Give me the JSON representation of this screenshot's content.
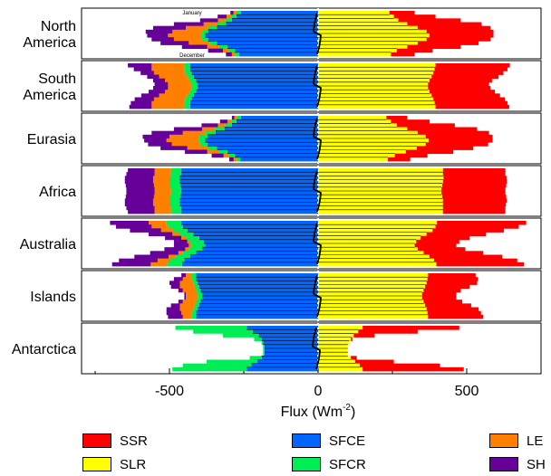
{
  "chart_data": {
    "type": "bar",
    "orientation": "horizontal-diverging-stacked",
    "xlabel": "Flux (Wm",
    "xlabel_sup": "-2",
    "xlabel_end": ")",
    "xlim": [
      -800,
      800
    ],
    "xticks": [
      -500,
      0,
      500
    ],
    "xtick_labels": [
      "-500",
      "0",
      "500"
    ],
    "month_labels": {
      "first": "January",
      "last": "December"
    },
    "colors": {
      "SSR": "#ff0000",
      "SLR": "#ffff00",
      "SFCE": "#0066ff",
      "SFCR": "#00ee55",
      "LE": "#ff8000",
      "SH": "#660099"
    },
    "series_order_positive": [
      "SLR",
      "SSR"
    ],
    "series_order_negative": [
      "SFCE",
      "SFCR",
      "LE",
      "SH"
    ],
    "panels": [
      {
        "region_lines": [
          "North",
          "America"
        ],
        "rows": [
          {
            "SLR": 240,
            "SSR": 85,
            "SFCE": -260,
            "SFCR": -15,
            "LE": -10,
            "SH": -10
          },
          {
            "SLR": 255,
            "SSR": 140,
            "SFCE": -275,
            "SFCR": -18,
            "LE": -15,
            "SH": -30
          },
          {
            "SLR": 270,
            "SSR": 210,
            "SFCE": -290,
            "SFCR": -22,
            "LE": -25,
            "SH": -60
          },
          {
            "SLR": 300,
            "SSR": 250,
            "SFCE": -310,
            "SFCR": -30,
            "LE": -45,
            "SH": -100
          },
          {
            "SLR": 335,
            "SSR": 245,
            "SFCE": -340,
            "SFCR": -30,
            "LE": -75,
            "SH": -110
          },
          {
            "SLR": 365,
            "SSR": 225,
            "SFCE": -370,
            "SFCR": -20,
            "LE": -100,
            "SH": -90
          },
          {
            "SLR": 375,
            "SSR": 215,
            "SFCE": -380,
            "SFCR": -15,
            "LE": -110,
            "SH": -70
          },
          {
            "SLR": 365,
            "SSR": 215,
            "SFCE": -370,
            "SFCR": -20,
            "LE": -95,
            "SH": -75
          },
          {
            "SLR": 335,
            "SSR": 205,
            "SFCE": -340,
            "SFCR": -25,
            "LE": -70,
            "SH": -95
          },
          {
            "SLR": 300,
            "SSR": 180,
            "SFCE": -305,
            "SFCR": -28,
            "LE": -40,
            "SH": -85
          },
          {
            "SLR": 265,
            "SSR": 120,
            "SFCE": -280,
            "SFCR": -20,
            "LE": -20,
            "SH": -50
          },
          {
            "SLR": 245,
            "SSR": 80,
            "SFCE": -265,
            "SFCR": -15,
            "LE": -10,
            "SH": -20
          }
        ]
      },
      {
        "region_lines": [
          "South",
          "America"
        ],
        "rows": [
          {
            "SLR": 395,
            "SSR": 250,
            "SFCE": -430,
            "SFCR": -20,
            "LE": -110,
            "SH": -80
          },
          {
            "SLR": 392,
            "SSR": 245,
            "SFCE": -430,
            "SFCR": -20,
            "LE": -110,
            "SH": -60
          },
          {
            "SLR": 388,
            "SSR": 235,
            "SFCE": -425,
            "SFCR": -22,
            "LE": -105,
            "SH": -45
          },
          {
            "SLR": 382,
            "SSR": 225,
            "SFCE": -418,
            "SFCR": -22,
            "LE": -95,
            "SH": -40
          },
          {
            "SLR": 375,
            "SSR": 210,
            "SFCE": -410,
            "SFCR": -20,
            "LE": -85,
            "SH": -40
          },
          {
            "SLR": 370,
            "SSR": 205,
            "SFCE": -405,
            "SFCR": -20,
            "LE": -80,
            "SH": -45
          },
          {
            "SLR": 370,
            "SSR": 210,
            "SFCE": -405,
            "SFCR": -20,
            "LE": -80,
            "SH": -50
          },
          {
            "SLR": 375,
            "SSR": 220,
            "SFCE": -410,
            "SFCR": -20,
            "LE": -85,
            "SH": -55
          },
          {
            "SLR": 382,
            "SSR": 230,
            "SFCE": -418,
            "SFCR": -22,
            "LE": -95,
            "SH": -60
          },
          {
            "SLR": 388,
            "SSR": 240,
            "SFCE": -425,
            "SFCR": -22,
            "LE": -105,
            "SH": -65
          },
          {
            "SLR": 392,
            "SSR": 245,
            "SFCE": -430,
            "SFCR": -20,
            "LE": -110,
            "SH": -70
          },
          {
            "SLR": 395,
            "SSR": 248,
            "SFCE": -430,
            "SFCR": -20,
            "LE": -110,
            "SH": -75
          }
        ]
      },
      {
        "region_lines": [
          "Eurasia"
        ],
        "rows": [
          {
            "SLR": 230,
            "SSR": 70,
            "SFCE": -260,
            "SFCR": -12,
            "LE": -10,
            "SH": -8
          },
          {
            "SLR": 245,
            "SSR": 130,
            "SFCE": -275,
            "SFCR": -15,
            "LE": -15,
            "SH": -25
          },
          {
            "SLR": 265,
            "SSR": 195,
            "SFCE": -290,
            "SFCR": -22,
            "LE": -25,
            "SH": -55
          },
          {
            "SLR": 300,
            "SSR": 235,
            "SFCE": -315,
            "SFCR": -30,
            "LE": -45,
            "SH": -95
          },
          {
            "SLR": 335,
            "SSR": 240,
            "SFCE": -345,
            "SFCR": -35,
            "LE": -75,
            "SH": -105
          },
          {
            "SLR": 362,
            "SSR": 225,
            "SFCE": -372,
            "SFCR": -28,
            "LE": -100,
            "SH": -90
          },
          {
            "SLR": 372,
            "SSR": 215,
            "SFCE": -380,
            "SFCR": -20,
            "LE": -110,
            "SH": -75
          },
          {
            "SLR": 362,
            "SSR": 210,
            "SFCE": -372,
            "SFCR": -25,
            "LE": -95,
            "SH": -80
          },
          {
            "SLR": 332,
            "SSR": 190,
            "SFCE": -340,
            "SFCR": -30,
            "LE": -70,
            "SH": -90
          },
          {
            "SLR": 295,
            "SSR": 160,
            "SFCE": -305,
            "SFCR": -28,
            "LE": -40,
            "SH": -75
          },
          {
            "SLR": 258,
            "SSR": 110,
            "SFCE": -280,
            "SFCR": -20,
            "LE": -18,
            "SH": -40
          },
          {
            "SLR": 235,
            "SSR": 75,
            "SFCE": -262,
            "SFCR": -12,
            "LE": -10,
            "SH": -15
          }
        ]
      },
      {
        "region_lines": [
          "Africa"
        ],
        "rows": [
          {
            "SLR": 420,
            "SSR": 210,
            "SFCE": -460,
            "SFCR": -35,
            "LE": -55,
            "SH": -90
          },
          {
            "SLR": 420,
            "SSR": 210,
            "SFCE": -460,
            "SFCR": -35,
            "LE": -55,
            "SH": -95
          },
          {
            "SLR": 422,
            "SSR": 212,
            "SFCE": -465,
            "SFCR": -35,
            "LE": -55,
            "SH": -95
          },
          {
            "SLR": 420,
            "SSR": 215,
            "SFCE": -465,
            "SFCR": -35,
            "LE": -55,
            "SH": -95
          },
          {
            "SLR": 418,
            "SSR": 215,
            "SFCE": -462,
            "SFCR": -35,
            "LE": -55,
            "SH": -95
          },
          {
            "SLR": 415,
            "SSR": 215,
            "SFCE": -460,
            "SFCR": -35,
            "LE": -55,
            "SH": -95
          },
          {
            "SLR": 415,
            "SSR": 215,
            "SFCE": -460,
            "SFCR": -35,
            "LE": -55,
            "SH": -95
          },
          {
            "SLR": 418,
            "SSR": 215,
            "SFCE": -462,
            "SFCR": -35,
            "LE": -55,
            "SH": -95
          },
          {
            "SLR": 420,
            "SSR": 215,
            "SFCE": -465,
            "SFCR": -35,
            "LE": -55,
            "SH": -95
          },
          {
            "SLR": 420,
            "SSR": 212,
            "SFCE": -465,
            "SFCR": -35,
            "LE": -55,
            "SH": -95
          },
          {
            "SLR": 420,
            "SSR": 210,
            "SFCE": -460,
            "SFCR": -35,
            "LE": -55,
            "SH": -95
          },
          {
            "SLR": 420,
            "SSR": 210,
            "SFCE": -460,
            "SFCR": -35,
            "LE": -55,
            "SH": -90
          }
        ]
      },
      {
        "region_lines": [
          "Australia"
        ],
        "rows": [
          {
            "SLR": 400,
            "SSR": 300,
            "SFCE": -460,
            "SFCR": -50,
            "LE": -60,
            "SH": -130
          },
          {
            "SLR": 395,
            "SSR": 280,
            "SFCE": -455,
            "SFCR": -50,
            "LE": -55,
            "SH": -120
          },
          {
            "SLR": 385,
            "SSR": 240,
            "SFCE": -440,
            "SFCR": -48,
            "LE": -40,
            "SH": -105
          },
          {
            "SLR": 365,
            "SSR": 200,
            "SFCE": -420,
            "SFCR": -45,
            "LE": -25,
            "SH": -80
          },
          {
            "SLR": 345,
            "SSR": 165,
            "SFCE": -400,
            "SFCR": -45,
            "LE": -15,
            "SH": -55
          },
          {
            "SLR": 330,
            "SSR": 145,
            "SFCE": -385,
            "SFCR": -45,
            "LE": -10,
            "SH": -45
          },
          {
            "SLR": 325,
            "SSR": 140,
            "SFCE": -380,
            "SFCR": -45,
            "LE": -10,
            "SH": -50
          },
          {
            "SLR": 335,
            "SSR": 160,
            "SFCE": -390,
            "SFCR": -45,
            "LE": -12,
            "SH": -70
          },
          {
            "SLR": 355,
            "SSR": 200,
            "SFCE": -410,
            "SFCR": -45,
            "LE": -15,
            "SH": -95
          },
          {
            "SLR": 375,
            "SSR": 245,
            "SFCE": -430,
            "SFCR": -48,
            "LE": -25,
            "SH": -115
          },
          {
            "SLR": 390,
            "SSR": 280,
            "SFCE": -450,
            "SFCR": -50,
            "LE": -40,
            "SH": -130
          },
          {
            "SLR": 398,
            "SSR": 295,
            "SFCE": -458,
            "SFCR": -50,
            "LE": -55,
            "SH": -130
          }
        ]
      },
      {
        "region_lines": [
          "Islands"
        ],
        "rows": [
          {
            "SLR": 370,
            "SSR": 160,
            "SFCE": -410,
            "SFCR": -15,
            "LE": -20,
            "SH": -15
          },
          {
            "SLR": 368,
            "SSR": 170,
            "SFCE": -410,
            "SFCR": -15,
            "LE": -30,
            "SH": -30
          },
          {
            "SLR": 365,
            "SSR": 170,
            "SFCE": -405,
            "SFCR": -15,
            "LE": -45,
            "SH": -35
          },
          {
            "SLR": 360,
            "SSR": 150,
            "SFCE": -400,
            "SFCR": -15,
            "LE": -50,
            "SH": -30
          },
          {
            "SLR": 355,
            "SSR": 125,
            "SFCE": -395,
            "SFCR": -15,
            "LE": -45,
            "SH": -15
          },
          {
            "SLR": 350,
            "SSR": 115,
            "SFCE": -390,
            "SFCR": -15,
            "LE": -40,
            "SH": -5
          },
          {
            "SLR": 350,
            "SSR": 115,
            "SFCE": -390,
            "SFCR": -15,
            "LE": -40,
            "SH": -5
          },
          {
            "SLR": 355,
            "SSR": 130,
            "SFCE": -395,
            "SFCR": -15,
            "LE": -45,
            "SH": -15
          },
          {
            "SLR": 360,
            "SSR": 155,
            "SFCE": -400,
            "SFCR": -15,
            "LE": -50,
            "SH": -30
          },
          {
            "SLR": 365,
            "SSR": 175,
            "SFCE": -405,
            "SFCR": -15,
            "LE": -45,
            "SH": -45
          },
          {
            "SLR": 368,
            "SSR": 180,
            "SFCE": -410,
            "SFCR": -15,
            "LE": -35,
            "SH": -50
          },
          {
            "SLR": 370,
            "SSR": 185,
            "SFCE": -410,
            "SFCR": -15,
            "LE": -30,
            "SH": -50
          }
        ]
      },
      {
        "region_lines": [
          "Antarctica"
        ],
        "rows": [
          {
            "SLR": 150,
            "SSR": 325,
            "SFCE": -240,
            "SFCR": -240,
            "LE": 0,
            "SH": 0
          },
          {
            "SLR": 135,
            "SSR": 200,
            "SFCE": -220,
            "SFCR": -200,
            "LE": 0,
            "SH": 0
          },
          {
            "SLR": 120,
            "SSR": 70,
            "SFCE": -200,
            "SFCR": -120,
            "LE": 0,
            "SH": 0
          },
          {
            "SLR": 110,
            "SSR": 5,
            "SFCE": -190,
            "SFCR": -25,
            "LE": 0,
            "SH": 0
          },
          {
            "SLR": 105,
            "SSR": 0,
            "SFCE": -185,
            "SFCR": -5,
            "LE": 0,
            "SH": 0
          },
          {
            "SLR": 100,
            "SSR": 0,
            "SFCE": -180,
            "SFCR": -5,
            "LE": 0,
            "SH": 0
          },
          {
            "SLR": 100,
            "SSR": 0,
            "SFCE": -180,
            "SFCR": -5,
            "LE": 0,
            "SH": 0
          },
          {
            "SLR": 100,
            "SSR": 0,
            "SFCE": -180,
            "SFCR": -5,
            "LE": 0,
            "SH": 0
          },
          {
            "SLR": 110,
            "SSR": 20,
            "SFCE": -190,
            "SFCR": -40,
            "LE": 0,
            "SH": 0
          },
          {
            "SLR": 125,
            "SSR": 130,
            "SFCE": -205,
            "SFCR": -170,
            "LE": 0,
            "SH": 0
          },
          {
            "SLR": 140,
            "SSR": 270,
            "SFCE": -225,
            "SFCR": -230,
            "LE": 0,
            "SH": 0
          },
          {
            "SLR": 150,
            "SSR": 340,
            "SFCE": -240,
            "SFCR": -250,
            "LE": 0,
            "SH": 0
          }
        ]
      }
    ]
  },
  "legend": [
    {
      "key": "SSR",
      "label": "SSR",
      "color": "#ff0000"
    },
    {
      "key": "SFCE",
      "label": "SFCE",
      "color": "#0066ff"
    },
    {
      "key": "LE",
      "label": "LE",
      "color": "#ff8000"
    },
    {
      "key": "SLR",
      "label": "SLR",
      "color": "#ffff00"
    },
    {
      "key": "SFCR",
      "label": "SFCR",
      "color": "#00ee55"
    },
    {
      "key": "SH",
      "label": "SH",
      "color": "#660099"
    }
  ]
}
